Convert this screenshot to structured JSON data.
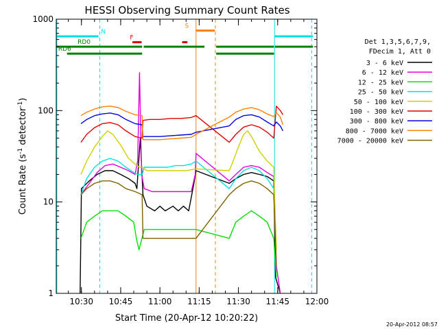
{
  "chart_data": {
    "type": "line",
    "title": "HESSI Observing Summary Count Rates",
    "xlabel": "Start Time (20-Apr-12 10:20:22)",
    "ylabel": "Count Rate (s⁻¹ detector⁻¹)",
    "ylabel_parts": {
      "main": "Count Rate (s",
      "exp1": "-1",
      "mid": " detector",
      "exp2": "-1",
      "end": ")"
    },
    "yscale": "log",
    "ylim": [
      1,
      1000
    ],
    "y_ticks": [
      "1",
      "10",
      "100",
      "1000"
    ],
    "xlim_minutes": [
      20.37,
      120.0
    ],
    "x_ticks": [
      {
        "label": "10:30",
        "minute": 30
      },
      {
        "label": "10:45",
        "minute": 45
      },
      {
        "label": "11:00",
        "minute": 60
      },
      {
        "label": "11:15",
        "minute": 75
      },
      {
        "label": "11:30",
        "minute": 90
      },
      {
        "label": "11:45",
        "minute": 105
      },
      {
        "label": "12:00",
        "minute": 120
      }
    ],
    "timestamp": "20-Apr-2012 08:57",
    "legend_header": [
      "Det 1,3,5,6,7,9,",
      "FDecim 1, Att 0"
    ],
    "series": [
      {
        "name": "3 - 6 keV",
        "color": "#000000",
        "points": [
          [
            29.5,
            1.0
          ],
          [
            30.0,
            14
          ],
          [
            33,
            17
          ],
          [
            36,
            20
          ],
          [
            39,
            22
          ],
          [
            42,
            22
          ],
          [
            45,
            20
          ],
          [
            48,
            18
          ],
          [
            50.5,
            16
          ],
          [
            51.2,
            14
          ],
          [
            52.5,
            50
          ],
          [
            53.5,
            12
          ],
          [
            55,
            9
          ],
          [
            58,
            8
          ],
          [
            60,
            9
          ],
          [
            62,
            8
          ],
          [
            65,
            9
          ],
          [
            67,
            8
          ],
          [
            69,
            9
          ],
          [
            71,
            8
          ],
          [
            73,
            16
          ],
          [
            73.8,
            22
          ],
          [
            86.5,
            16
          ],
          [
            89,
            18
          ],
          [
            92,
            20
          ],
          [
            95,
            21
          ],
          [
            98,
            20
          ],
          [
            101,
            19
          ],
          [
            103.5,
            17
          ],
          [
            104.2,
            1.5
          ],
          [
            106,
            1
          ]
        ]
      },
      {
        "name": "6 - 12 keV",
        "color": "#e000e0",
        "points": [
          [
            29.8,
            12
          ],
          [
            33,
            16
          ],
          [
            36,
            21
          ],
          [
            39,
            25
          ],
          [
            42,
            26
          ],
          [
            45,
            24
          ],
          [
            48,
            22
          ],
          [
            50.5,
            20
          ],
          [
            51.5,
            28
          ],
          [
            52.2,
            260
          ],
          [
            53.0,
            20
          ],
          [
            54,
            14
          ],
          [
            57,
            13
          ],
          [
            60,
            13
          ],
          [
            63,
            13
          ],
          [
            66,
            13
          ],
          [
            69,
            13
          ],
          [
            72,
            13
          ],
          [
            73.5,
            20
          ],
          [
            73.8,
            34
          ],
          [
            86.5,
            17
          ],
          [
            89,
            20
          ],
          [
            92,
            24
          ],
          [
            95,
            25
          ],
          [
            98,
            24
          ],
          [
            101,
            21
          ],
          [
            103.5,
            19
          ],
          [
            104.5,
            2
          ],
          [
            106,
            1
          ]
        ]
      },
      {
        "name": "12 - 25 keV",
        "color": "#00e000",
        "points": [
          [
            29.8,
            4
          ],
          [
            32,
            6
          ],
          [
            35,
            7
          ],
          [
            38,
            8
          ],
          [
            41,
            8
          ],
          [
            44,
            8
          ],
          [
            47,
            7
          ],
          [
            50,
            6
          ],
          [
            51,
            4
          ],
          [
            52,
            3
          ],
          [
            54,
            5
          ],
          [
            57,
            5
          ],
          [
            60,
            5
          ],
          [
            63,
            5
          ],
          [
            66,
            5
          ],
          [
            69,
            5
          ],
          [
            72,
            5
          ],
          [
            73.8,
            5
          ],
          [
            86.5,
            4
          ],
          [
            89,
            6
          ],
          [
            92,
            7
          ],
          [
            95,
            8
          ],
          [
            98,
            7
          ],
          [
            101,
            6
          ],
          [
            103.5,
            4
          ],
          [
            104.5,
            1.5
          ]
        ]
      },
      {
        "name": "25 - 50 keV",
        "color": "#00e0e0",
        "points": [
          [
            29.8,
            12
          ],
          [
            32,
            18
          ],
          [
            35,
            24
          ],
          [
            38,
            28
          ],
          [
            41,
            30
          ],
          [
            44,
            28
          ],
          [
            47,
            24
          ],
          [
            50,
            21
          ],
          [
            51.5,
            20
          ],
          [
            53.2,
            20
          ],
          [
            54,
            24
          ],
          [
            57,
            24
          ],
          [
            60,
            24
          ],
          [
            63,
            24
          ],
          [
            66,
            25
          ],
          [
            69,
            25
          ],
          [
            72,
            26
          ],
          [
            73.8,
            28
          ],
          [
            86.5,
            14
          ],
          [
            89,
            18
          ],
          [
            92,
            22
          ],
          [
            95,
            24
          ],
          [
            98,
            22
          ],
          [
            101,
            18
          ],
          [
            103.5,
            14
          ],
          [
            104.5,
            2
          ]
        ]
      },
      {
        "name": "50 - 100 keV",
        "color": "#d0d000",
        "points": [
          [
            29.8,
            20
          ],
          [
            32,
            28
          ],
          [
            35,
            40
          ],
          [
            38,
            52
          ],
          [
            40,
            60
          ],
          [
            42,
            55
          ],
          [
            45,
            42
          ],
          [
            48,
            30
          ],
          [
            50.5,
            26
          ],
          [
            52,
            24
          ],
          [
            53.2,
            24
          ],
          [
            55,
            22
          ],
          [
            58,
            22
          ],
          [
            61,
            22
          ],
          [
            64,
            22
          ],
          [
            67,
            22
          ],
          [
            70,
            22
          ],
          [
            73.8,
            23
          ],
          [
            86.5,
            22
          ],
          [
            88,
            28
          ],
          [
            90,
            40
          ],
          [
            92,
            55
          ],
          [
            93.5,
            60
          ],
          [
            95,
            52
          ],
          [
            98,
            36
          ],
          [
            101,
            28
          ],
          [
            103.5,
            24
          ],
          [
            104.5,
            3
          ]
        ]
      },
      {
        "name": "100 - 300 keV",
        "color": "#e00000",
        "points": [
          [
            29.8,
            45
          ],
          [
            32,
            55
          ],
          [
            35,
            65
          ],
          [
            38,
            72
          ],
          [
            41,
            74
          ],
          [
            44,
            70
          ],
          [
            47,
            60
          ],
          [
            50.5,
            52
          ],
          [
            53.2,
            50
          ],
          [
            53.5,
            78
          ],
          [
            56,
            80
          ],
          [
            60,
            80
          ],
          [
            64,
            82
          ],
          [
            68,
            82
          ],
          [
            72,
            84
          ],
          [
            73.8,
            88
          ],
          [
            86.5,
            45
          ],
          [
            89,
            55
          ],
          [
            92,
            66
          ],
          [
            95,
            70
          ],
          [
            98,
            66
          ],
          [
            101,
            58
          ],
          [
            103.5,
            50
          ],
          [
            104.5,
            112
          ],
          [
            106,
            100
          ],
          [
            107,
            90
          ]
        ]
      },
      {
        "name": "300 - 800 keV",
        "color": "#0000e0",
        "points": [
          [
            29.8,
            72
          ],
          [
            32,
            80
          ],
          [
            35,
            88
          ],
          [
            38,
            92
          ],
          [
            41,
            94
          ],
          [
            44,
            90
          ],
          [
            47,
            80
          ],
          [
            50.5,
            72
          ],
          [
            53.2,
            70
          ],
          [
            53.5,
            52
          ],
          [
            56,
            52
          ],
          [
            60,
            52
          ],
          [
            64,
            53
          ],
          [
            68,
            54
          ],
          [
            72,
            55
          ],
          [
            73.8,
            58
          ],
          [
            86.5,
            68
          ],
          [
            89,
            80
          ],
          [
            92,
            88
          ],
          [
            95,
            90
          ],
          [
            98,
            85
          ],
          [
            101,
            75
          ],
          [
            103.5,
            68
          ],
          [
            104.5,
            75
          ],
          [
            106,
            68
          ],
          [
            107,
            60
          ]
        ]
      },
      {
        "name": "800 - 7000 keV",
        "color": "#ff8000",
        "points": [
          [
            29.8,
            88
          ],
          [
            32,
            96
          ],
          [
            35,
            104
          ],
          [
            38,
            110
          ],
          [
            41,
            112
          ],
          [
            44,
            108
          ],
          [
            47,
            98
          ],
          [
            50.5,
            90
          ],
          [
            53.2,
            88
          ],
          [
            53.5,
            48
          ],
          [
            56,
            48
          ],
          [
            60,
            48
          ],
          [
            64,
            49
          ],
          [
            68,
            50
          ],
          [
            72,
            51
          ],
          [
            73.8,
            55
          ],
          [
            86.5,
            85
          ],
          [
            89,
            96
          ],
          [
            92,
            104
          ],
          [
            95,
            108
          ],
          [
            98,
            102
          ],
          [
            101,
            92
          ],
          [
            103.5,
            86
          ],
          [
            104.5,
            95
          ],
          [
            106,
            85
          ],
          [
            107,
            70
          ]
        ]
      },
      {
        "name": "7000 - 20000 keV",
        "color": "#806000",
        "points": [
          [
            29.8,
            12
          ],
          [
            32,
            14
          ],
          [
            35,
            16
          ],
          [
            38,
            17
          ],
          [
            41,
            17
          ],
          [
            44,
            16
          ],
          [
            47,
            14
          ],
          [
            50.5,
            13
          ],
          [
            53.2,
            12
          ],
          [
            53.5,
            4
          ],
          [
            56,
            4
          ],
          [
            60,
            4
          ],
          [
            64,
            4
          ],
          [
            68,
            4
          ],
          [
            72,
            4
          ],
          [
            73.8,
            4
          ],
          [
            86.5,
            12
          ],
          [
            89,
            14
          ],
          [
            92,
            16
          ],
          [
            95,
            17
          ],
          [
            98,
            16
          ],
          [
            101,
            14
          ],
          [
            103.5,
            12
          ],
          [
            104.5,
            2
          ]
        ]
      }
    ],
    "flags": [
      {
        "label": "N",
        "color": "#00e0e0",
        "y_level": 650,
        "label_minute": 37.0,
        "segments": [
          [
            20.5,
            36.5
          ],
          [
            103.8,
            118.5
          ]
        ]
      },
      {
        "label": "RD0",
        "color": "#008000",
        "y_level": 500,
        "label_minute": 28.0,
        "segments": [
          [
            20.5,
            53.2
          ],
          [
            53.8,
            77.0
          ],
          [
            81.5,
            103.6
          ],
          [
            104.0,
            118.5
          ]
        ]
      },
      {
        "label": "RD6",
        "color": "#008000",
        "y_level": 420,
        "label_minute": 20.6,
        "segments": [
          [
            24.5,
            53.2
          ],
          [
            81.5,
            103.6
          ]
        ]
      },
      {
        "label": "F",
        "color": "#e00000",
        "y_level": 560,
        "label_minute": 48.0,
        "segments": [
          [
            49.5,
            53.0
          ],
          [
            68.5,
            70.5
          ]
        ]
      },
      {
        "label": "S",
        "color": "#ff8000",
        "y_level": 750,
        "label_minute": 69.0,
        "segments": [
          [
            73.8,
            81.0
          ]
        ]
      }
    ],
    "vlines": [
      {
        "minute": 20.6,
        "color": "#00e0e0",
        "style": "solid"
      },
      {
        "minute": 37.0,
        "color": "#00e0e0",
        "style": "dashed"
      },
      {
        "minute": 73.8,
        "color": "#ff8000",
        "style": "solid"
      },
      {
        "minute": 81.2,
        "color": "#ff8000",
        "style": "dashed"
      },
      {
        "minute": 103.8,
        "color": "#00e0e0",
        "style": "solid"
      },
      {
        "minute": 118.0,
        "color": "#00e0e0",
        "style": "dashed"
      }
    ],
    "grid": false,
    "legend_placement": "right"
  }
}
